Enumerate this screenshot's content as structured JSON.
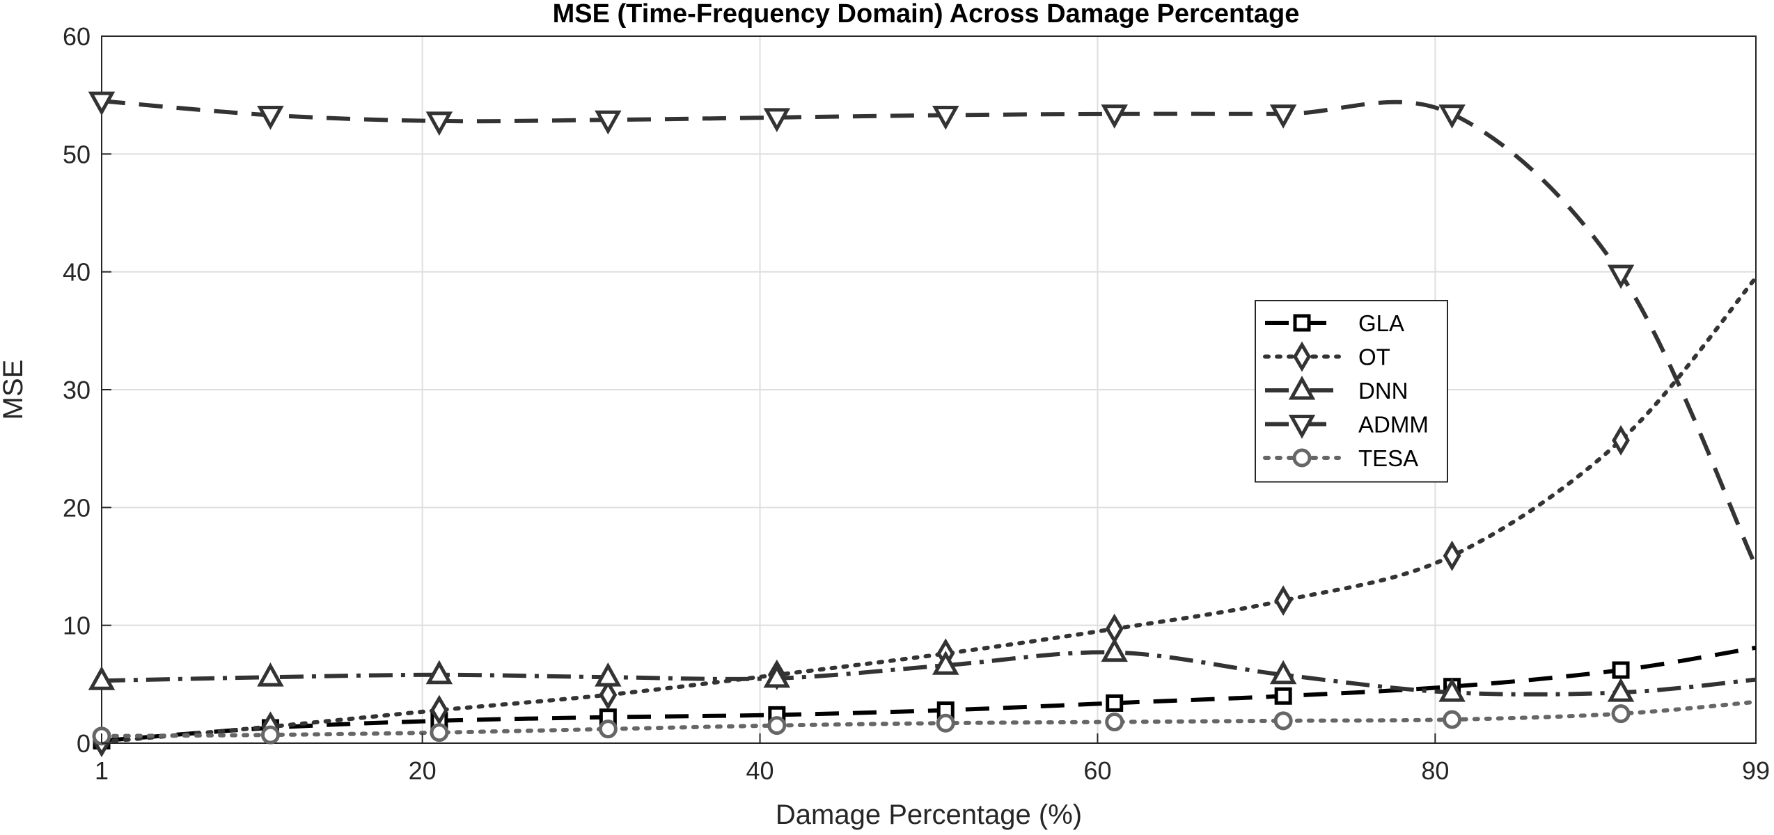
{
  "chart_data": {
    "type": "line",
    "title": "MSE (Time-Frequency Domain) Across Damage Percentage",
    "xlabel": "Damage Percentage (%)",
    "ylabel": "MSE",
    "xlim": [
      1,
      99
    ],
    "ylim": [
      0,
      60
    ],
    "xticks": [
      1,
      20,
      40,
      60,
      80,
      99
    ],
    "yticks": [
      0,
      10,
      20,
      30,
      40,
      50,
      60
    ],
    "grid": true,
    "legend_position": "center-right",
    "marker_x": [
      1,
      11,
      21,
      31,
      41,
      51,
      61,
      71,
      81,
      91
    ],
    "series": [
      {
        "name": "GLA",
        "marker": "square",
        "line_style": "dashed",
        "color": "#000000",
        "x": [
          1,
          11,
          21,
          31,
          41,
          51,
          61,
          71,
          81,
          91,
          99
        ],
        "values": [
          0.2,
          1.3,
          1.9,
          2.2,
          2.4,
          2.8,
          3.4,
          4.0,
          4.8,
          6.2,
          8.1
        ]
      },
      {
        "name": "OT",
        "marker": "diamond",
        "line_style": "dotted",
        "color": "#333333",
        "x": [
          1,
          11,
          21,
          31,
          41,
          51,
          61,
          71,
          81,
          91,
          99
        ],
        "values": [
          0.1,
          1.4,
          2.8,
          4.1,
          5.8,
          7.6,
          9.7,
          12.1,
          15.9,
          25.7,
          39.5
        ]
      },
      {
        "name": "DNN",
        "marker": "triangle-up",
        "line_style": "dashdot",
        "color": "#333333",
        "x": [
          1,
          11,
          21,
          31,
          41,
          51,
          61,
          71,
          81,
          91,
          99
        ],
        "values": [
          5.3,
          5.6,
          5.8,
          5.6,
          5.5,
          6.6,
          7.7,
          5.8,
          4.3,
          4.3,
          5.4
        ]
      },
      {
        "name": "ADMM",
        "marker": "triangle-down",
        "line_style": "dashed",
        "color": "#333333",
        "x": [
          1,
          11,
          21,
          31,
          41,
          51,
          61,
          71,
          81,
          91,
          99
        ],
        "values": [
          54.5,
          53.3,
          52.8,
          52.9,
          53.1,
          53.3,
          53.4,
          53.4,
          53.4,
          39.8,
          15.0
        ]
      },
      {
        "name": "TESA",
        "marker": "circle",
        "line_style": "dotted",
        "color": "#666666",
        "x": [
          1,
          11,
          21,
          31,
          41,
          51,
          61,
          71,
          81,
          91,
          99
        ],
        "values": [
          0.6,
          0.7,
          0.9,
          1.2,
          1.5,
          1.7,
          1.8,
          1.9,
          2.0,
          2.5,
          3.5
        ]
      }
    ]
  }
}
